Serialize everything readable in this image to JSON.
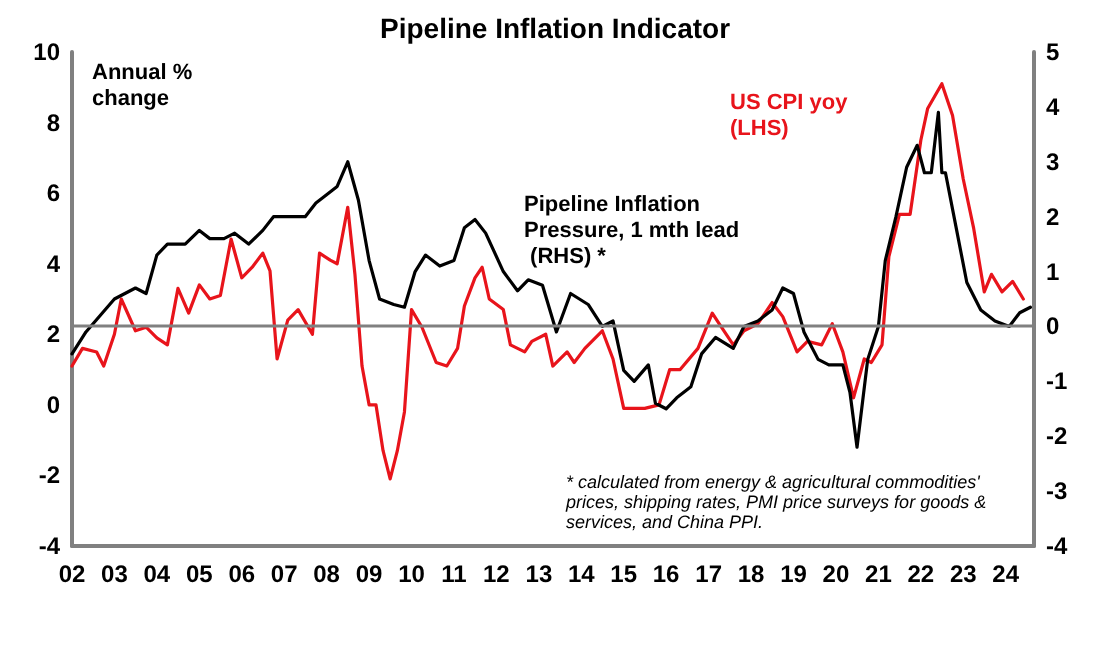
{
  "chart_data": {
    "type": "line",
    "title": "Pipeline Inflation Indicator",
    "ylabel": "Annual % change",
    "xlim": [
      "2002-01",
      "2024-09"
    ],
    "xticks": [
      {
        "value": "2002-01",
        "label": "02"
      },
      {
        "value": "2003-01",
        "label": "03"
      },
      {
        "value": "2004-01",
        "label": "04"
      },
      {
        "value": "2005-01",
        "label": "05"
      },
      {
        "value": "2006-01",
        "label": "06"
      },
      {
        "value": "2007-01",
        "label": "07"
      },
      {
        "value": "2008-01",
        "label": "08"
      },
      {
        "value": "2009-01",
        "label": "09"
      },
      {
        "value": "2010-01",
        "label": "10"
      },
      {
        "value": "2011-01",
        "label": "11"
      },
      {
        "value": "2012-01",
        "label": "12"
      },
      {
        "value": "2013-01",
        "label": "13"
      },
      {
        "value": "2014-01",
        "label": "14"
      },
      {
        "value": "2015-01",
        "label": "15"
      },
      {
        "value": "2016-01",
        "label": "16"
      },
      {
        "value": "2017-01",
        "label": "17"
      },
      {
        "value": "2018-01",
        "label": "18"
      },
      {
        "value": "2019-01",
        "label": "19"
      },
      {
        "value": "2020-01",
        "label": "20"
      },
      {
        "value": "2021-01",
        "label": "21"
      },
      {
        "value": "2022-01",
        "label": "22"
      },
      {
        "value": "2023-01",
        "label": "23"
      },
      {
        "value": "2024-01",
        "label": "24"
      }
    ],
    "ylim": [
      -4,
      10
    ],
    "yticks": [
      -4,
      -2,
      0,
      2,
      4,
      6,
      8,
      10
    ],
    "y2lim": [
      -4,
      5
    ],
    "y2ticks": [
      -4,
      -3,
      -2,
      -1,
      0,
      1,
      2,
      3,
      4,
      5
    ],
    "grid": false,
    "marker": "none",
    "line_style": "solid",
    "ref_lines": [
      {
        "axis": "y2",
        "value": 0,
        "color": "#808080"
      }
    ],
    "annotations": [
      "* calculated from energy & agricultural commodities' prices, shipping rates, PMI price surveys for goods & services, and China PPI."
    ],
    "series": [
      {
        "name": "US CPI yoy (LHS)",
        "color": "#e8141b",
        "x": [
          "2002-01",
          "2002-04",
          "2002-08",
          "2002-10",
          "2003-01",
          "2003-03",
          "2003-07",
          "2003-10",
          "2004-01",
          "2004-04",
          "2004-07",
          "2004-10",
          "2005-01",
          "2005-04",
          "2005-07",
          "2005-10",
          "2006-01",
          "2006-04",
          "2006-07",
          "2006-09",
          "2006-11",
          "2007-02",
          "2007-05",
          "2007-09",
          "2007-11",
          "2008-02",
          "2008-04",
          "2008-07",
          "2008-09",
          "2008-11",
          "2009-01",
          "2009-03",
          "2009-05",
          "2009-07",
          "2009-09",
          "2009-11",
          "2010-01",
          "2010-04",
          "2010-08",
          "2010-11",
          "2011-02",
          "2011-04",
          "2011-07",
          "2011-09",
          "2011-11",
          "2012-03",
          "2012-05",
          "2012-09",
          "2012-11",
          "2013-03",
          "2013-05",
          "2013-09",
          "2013-11",
          "2014-02",
          "2014-07",
          "2014-10",
          "2015-01",
          "2015-07",
          "2015-11",
          "2016-02",
          "2016-05",
          "2016-10",
          "2017-02",
          "2017-04",
          "2017-08",
          "2017-11",
          "2018-03",
          "2018-07",
          "2018-10",
          "2019-02",
          "2019-05",
          "2019-09",
          "2019-12",
          "2020-03",
          "2020-06",
          "2020-09",
          "2020-11",
          "2021-02",
          "2021-04",
          "2021-07",
          "2021-10",
          "2022-01",
          "2022-03",
          "2022-07",
          "2022-10",
          "2023-01",
          "2023-04",
          "2023-07",
          "2023-09",
          "2023-12",
          "2024-03",
          "2024-06"
        ],
        "values": [
          1.1,
          1.6,
          1.5,
          1.1,
          2.0,
          3.0,
          2.1,
          2.2,
          1.9,
          1.7,
          3.3,
          2.6,
          3.4,
          3.0,
          3.1,
          4.7,
          3.6,
          3.9,
          4.3,
          3.8,
          1.3,
          2.4,
          2.7,
          2.0,
          4.3,
          4.1,
          4.0,
          5.6,
          3.7,
          1.1,
          0.0,
          0.0,
          -1.3,
          -2.1,
          -1.3,
          -0.2,
          2.7,
          2.2,
          1.2,
          1.1,
          1.6,
          2.8,
          3.6,
          3.9,
          3.0,
          2.7,
          1.7,
          1.5,
          1.8,
          2.0,
          1.1,
          1.5,
          1.2,
          1.6,
          2.1,
          1.3,
          -0.1,
          -0.1,
          0.0,
          1.0,
          1.0,
          1.6,
          2.6,
          2.3,
          1.7,
          2.1,
          2.3,
          2.9,
          2.5,
          1.5,
          1.8,
          1.7,
          2.3,
          1.5,
          0.2,
          1.3,
          1.2,
          1.7,
          4.2,
          5.4,
          5.4,
          7.5,
          8.4,
          9.1,
          8.2,
          6.4,
          5.0,
          3.2,
          3.7,
          3.2,
          3.5,
          3.0
        ]
      },
      {
        "name": "Pipeline Inflation Pressure, 1 mth lead (RHS) *",
        "color": "#000000",
        "axis": "y2",
        "x": [
          "2002-01",
          "2002-05",
          "2003-01",
          "2003-07",
          "2003-10",
          "2004-01",
          "2004-04",
          "2004-09",
          "2005-01",
          "2005-04",
          "2005-08",
          "2005-11",
          "2006-03",
          "2006-07",
          "2006-10",
          "2007-03",
          "2007-07",
          "2007-10",
          "2008-01",
          "2008-04",
          "2008-07",
          "2008-10",
          "2009-01",
          "2009-04",
          "2009-08",
          "2009-11",
          "2010-02",
          "2010-05",
          "2010-09",
          "2011-01",
          "2011-04",
          "2011-07",
          "2011-10",
          "2012-03",
          "2012-07",
          "2012-10",
          "2013-02",
          "2013-06",
          "2013-10",
          "2014-03",
          "2014-07",
          "2014-10",
          "2015-01",
          "2015-04",
          "2015-08",
          "2015-10",
          "2016-01",
          "2016-04",
          "2016-08",
          "2016-11",
          "2017-03",
          "2017-08",
          "2017-11",
          "2018-03",
          "2018-07",
          "2018-10",
          "2019-01",
          "2019-04",
          "2019-08",
          "2019-11",
          "2020-03",
          "2020-05",
          "2020-07",
          "2020-10",
          "2021-01",
          "2021-03",
          "2021-06",
          "2021-09",
          "2021-12",
          "2022-02",
          "2022-04",
          "2022-06",
          "2022-07",
          "2022-08",
          "2022-11",
          "2023-02",
          "2023-06",
          "2023-10",
          "2024-02",
          "2024-05",
          "2024-08"
        ],
        "values": [
          -0.5,
          -0.1,
          0.5,
          0.7,
          0.6,
          1.3,
          1.5,
          1.5,
          1.75,
          1.6,
          1.6,
          1.7,
          1.5,
          1.75,
          2.0,
          2.0,
          2.0,
          2.25,
          2.4,
          2.55,
          3.0,
          2.3,
          1.2,
          0.5,
          0.4,
          0.35,
          1.0,
          1.3,
          1.1,
          1.2,
          1.8,
          1.95,
          1.7,
          1.0,
          0.65,
          0.85,
          0.75,
          -0.1,
          0.6,
          0.4,
          0.0,
          0.1,
          -0.8,
          -1.0,
          -0.7,
          -1.4,
          -1.5,
          -1.3,
          -1.1,
          -0.5,
          -0.2,
          -0.4,
          0.0,
          0.1,
          0.3,
          0.7,
          0.6,
          -0.1,
          -0.6,
          -0.7,
          -0.7,
          -1.2,
          -2.2,
          -0.6,
          0.0,
          1.2,
          2.0,
          2.9,
          3.3,
          2.8,
          2.8,
          3.9,
          2.8,
          2.8,
          1.8,
          0.8,
          0.3,
          0.1,
          0.0,
          0.25,
          0.35
        ]
      }
    ]
  }
}
